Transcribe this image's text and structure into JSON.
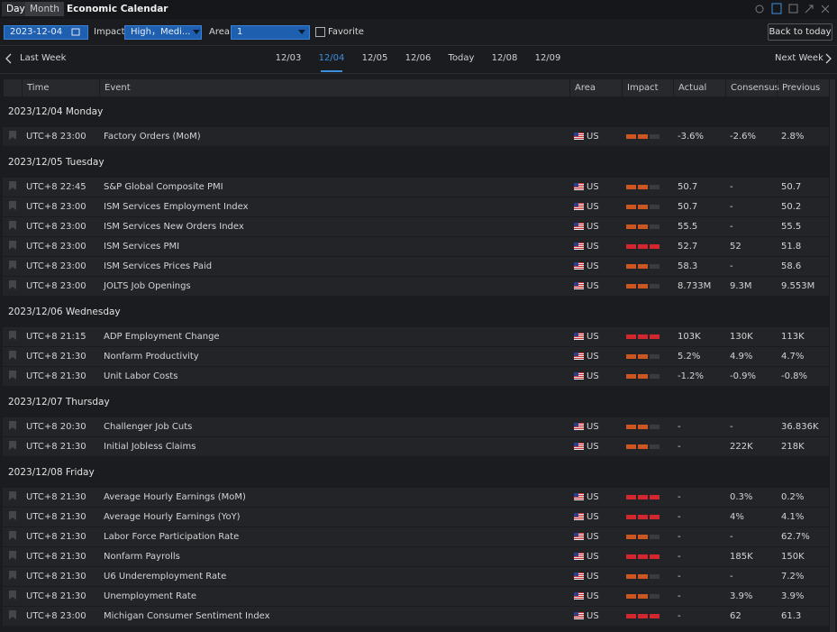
{
  "header": {
    "tabs": [
      "Day",
      "Month"
    ],
    "title": "Economic Calendar"
  },
  "toolbar": {
    "date": "2023-12-04",
    "impact_label": "Impact",
    "impact_value": "High，Medi...",
    "area_label": "Area",
    "area_value": "1",
    "favorite": "Favorite",
    "back_button": "Back to today"
  },
  "nav": {
    "prev": "Last Week",
    "days": [
      "12/03",
      "12/04",
      "12/05",
      "12/06",
      "Today",
      "12/08",
      "12/09"
    ],
    "selected_day": 1,
    "next": "Next Week"
  },
  "table": {
    "columns": [
      "Time",
      "Event",
      "Area",
      "Impact",
      "Actual",
      "Consensus",
      "Previous"
    ],
    "impact_colors": {
      "2": "#cc5520",
      "3": "#d3262f"
    },
    "groups": [
      {
        "date": "2023/12/04 Monday",
        "rows": [
          {
            "time": "UTC+8 23:00",
            "event": "Factory Orders (MoM)",
            "area": "US",
            "impact": 2,
            "actual": "-3.6%",
            "consensus": "-2.6%",
            "previous": "2.8%"
          }
        ]
      },
      {
        "date": "2023/12/05 Tuesday",
        "rows": [
          {
            "time": "UTC+8 22:45",
            "event": "S&P Global Composite PMI",
            "area": "US",
            "impact": 2,
            "actual": "50.7",
            "consensus": "-",
            "previous": "50.7"
          },
          {
            "time": "UTC+8 23:00",
            "event": "ISM Services Employment Index",
            "area": "US",
            "impact": 2,
            "actual": "50.7",
            "consensus": "-",
            "previous": "50.2"
          },
          {
            "time": "UTC+8 23:00",
            "event": "ISM Services New Orders Index",
            "area": "US",
            "impact": 2,
            "actual": "55.5",
            "consensus": "-",
            "previous": "55.5"
          },
          {
            "time": "UTC+8 23:00",
            "event": "ISM Services PMI",
            "area": "US",
            "impact": 3,
            "actual": "52.7",
            "consensus": "52",
            "previous": "51.8"
          },
          {
            "time": "UTC+8 23:00",
            "event": "ISM Services Prices Paid",
            "area": "US",
            "impact": 2,
            "actual": "58.3",
            "consensus": "-",
            "previous": "58.6"
          },
          {
            "time": "UTC+8 23:00",
            "event": "JOLTS Job Openings",
            "area": "US",
            "impact": 2,
            "actual": "8.733M",
            "consensus": "9.3M",
            "previous": "9.553M"
          }
        ]
      },
      {
        "date": "2023/12/06 Wednesday",
        "rows": [
          {
            "time": "UTC+8 21:15",
            "event": "ADP Employment Change",
            "area": "US",
            "impact": 3,
            "actual": "103K",
            "consensus": "130K",
            "previous": "113K"
          },
          {
            "time": "UTC+8 21:30",
            "event": "Nonfarm Productivity",
            "area": "US",
            "impact": 2,
            "actual": "5.2%",
            "consensus": "4.9%",
            "previous": "4.7%"
          },
          {
            "time": "UTC+8 21:30",
            "event": "Unit Labor Costs",
            "area": "US",
            "impact": 2,
            "actual": "-1.2%",
            "consensus": "-0.9%",
            "previous": "-0.8%"
          }
        ]
      },
      {
        "date": "2023/12/07 Thursday",
        "rows": [
          {
            "time": "UTC+8 20:30",
            "event": "Challenger Job Cuts",
            "area": "US",
            "impact": 2,
            "actual": "-",
            "consensus": "-",
            "previous": "36.836K"
          },
          {
            "time": "UTC+8 21:30",
            "event": "Initial Jobless Claims",
            "area": "US",
            "impact": 2,
            "actual": "-",
            "consensus": "222K",
            "previous": "218K"
          }
        ]
      },
      {
        "date": "2023/12/08 Friday",
        "rows": [
          {
            "time": "UTC+8 21:30",
            "event": "Average Hourly Earnings (MoM)",
            "area": "US",
            "impact": 3,
            "actual": "-",
            "consensus": "0.3%",
            "previous": "0.2%"
          },
          {
            "time": "UTC+8 21:30",
            "event": "Average Hourly Earnings (YoY)",
            "area": "US",
            "impact": 3,
            "actual": "-",
            "consensus": "4%",
            "previous": "4.1%"
          },
          {
            "time": "UTC+8 21:30",
            "event": "Labor Force Participation Rate",
            "area": "US",
            "impact": 2,
            "actual": "-",
            "consensus": "-",
            "previous": "62.7%"
          },
          {
            "time": "UTC+8 21:30",
            "event": "Nonfarm Payrolls",
            "area": "US",
            "impact": 3,
            "actual": "-",
            "consensus": "185K",
            "previous": "150K"
          },
          {
            "time": "UTC+8 21:30",
            "event": "U6 Underemployment Rate",
            "area": "US",
            "impact": 2,
            "actual": "-",
            "consensus": "-",
            "previous": "7.2%"
          },
          {
            "time": "UTC+8 21:30",
            "event": "Unemployment Rate",
            "area": "US",
            "impact": 2,
            "actual": "-",
            "consensus": "3.9%",
            "previous": "3.9%"
          },
          {
            "time": "UTC+8 23:00",
            "event": "Michigan Consumer Sentiment Index",
            "area": "US",
            "impact": 3,
            "actual": "-",
            "consensus": "62",
            "previous": "61.3"
          }
        ]
      }
    ]
  }
}
